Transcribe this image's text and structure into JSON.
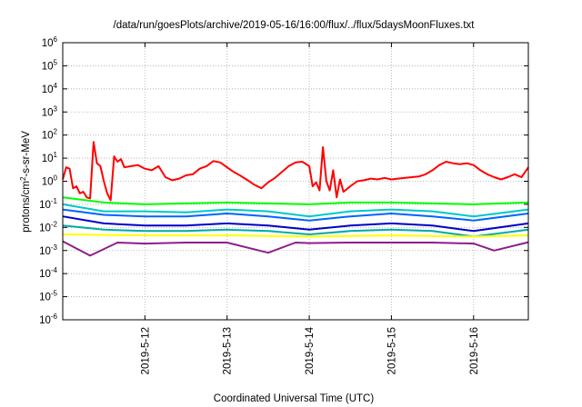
{
  "chart_data": {
    "type": "line",
    "title": "/data/run/goesPlots/archive/2019-05-16/16:00/flux/../flux/5daysMoonFluxes.txt",
    "xlabel": "Coordinated Universal Time (UTC)",
    "ylabel": {
      "base": "protons/cm",
      "sup": "2",
      "rest": "-s-sr-MeV"
    },
    "yscale": "log",
    "ylim": [
      1e-06,
      1000000.0
    ],
    "xlim": [
      "2019-05-11T00:00",
      "2019-05-16T16:00"
    ],
    "grid": true,
    "legend": "none",
    "x_ticks": [
      {
        "t": "2019-05-12T00:00",
        "label": "2019-5-12"
      },
      {
        "t": "2019-05-13T00:00",
        "label": "2019-5-13"
      },
      {
        "t": "2019-05-14T00:00",
        "label": "2019-5-14"
      },
      {
        "t": "2019-05-15T00:00",
        "label": "2019-5-15"
      },
      {
        "t": "2019-05-16T00:00",
        "label": "2019-5-16"
      }
    ],
    "y_ticks": [
      {
        "exp": "-6"
      },
      {
        "exp": "-5"
      },
      {
        "exp": "-4"
      },
      {
        "exp": "-3"
      },
      {
        "exp": "-2"
      },
      {
        "exp": "-1"
      },
      {
        "exp": "0"
      },
      {
        "exp": "1"
      },
      {
        "exp": "2"
      },
      {
        "exp": "3"
      },
      {
        "exp": "4"
      },
      {
        "exp": "5"
      },
      {
        "exp": "6"
      }
    ],
    "series": [
      {
        "color": "#ff0000",
        "points": [
          [
            "2019-05-11T00:00",
            1.2
          ],
          [
            "2019-05-11T01:00",
            4.0
          ],
          [
            "2019-05-11T02:00",
            3.5
          ],
          [
            "2019-05-11T03:00",
            0.5
          ],
          [
            "2019-05-11T04:00",
            0.6
          ],
          [
            "2019-05-11T05:00",
            0.3
          ],
          [
            "2019-05-11T06:00",
            0.35
          ],
          [
            "2019-05-11T07:00",
            0.2
          ],
          [
            "2019-05-11T08:00",
            0.18
          ],
          [
            "2019-05-11T09:00",
            50
          ],
          [
            "2019-05-11T10:00",
            6
          ],
          [
            "2019-05-11T11:00",
            4.5
          ],
          [
            "2019-05-11T12:00",
            1.0
          ],
          [
            "2019-05-11T13:00",
            0.3
          ],
          [
            "2019-05-11T14:00",
            0.15
          ],
          [
            "2019-05-11T15:00",
            12
          ],
          [
            "2019-05-11T16:00",
            7
          ],
          [
            "2019-05-11T17:00",
            9
          ],
          [
            "2019-05-11T18:00",
            4
          ],
          [
            "2019-05-11T20:00",
            4.5
          ],
          [
            "2019-05-11T22:00",
            5
          ],
          [
            "2019-05-12T00:00",
            3.5
          ],
          [
            "2019-05-12T02:00",
            3
          ],
          [
            "2019-05-12T04:00",
            4.5
          ],
          [
            "2019-05-12T06:00",
            1.5
          ],
          [
            "2019-05-12T08:00",
            1.1
          ],
          [
            "2019-05-12T10:00",
            1.3
          ],
          [
            "2019-05-12T12:00",
            1.8
          ],
          [
            "2019-05-12T14:00",
            2.0
          ],
          [
            "2019-05-12T16:00",
            3.5
          ],
          [
            "2019-05-12T18:00",
            4.5
          ],
          [
            "2019-05-12T20:00",
            7.5
          ],
          [
            "2019-05-12T22:00",
            6.5
          ],
          [
            "2019-05-13T00:00",
            4
          ],
          [
            "2019-05-13T02:00",
            2.5
          ],
          [
            "2019-05-13T04:00",
            1.7
          ],
          [
            "2019-05-13T06:00",
            1.1
          ],
          [
            "2019-05-13T08:00",
            0.7
          ],
          [
            "2019-05-13T10:00",
            0.5
          ],
          [
            "2019-05-13T12:00",
            0.9
          ],
          [
            "2019-05-13T14:00",
            1.4
          ],
          [
            "2019-05-13T16:00",
            2.5
          ],
          [
            "2019-05-13T18:00",
            4.5
          ],
          [
            "2019-05-13T20:00",
            6.5
          ],
          [
            "2019-05-13T22:00",
            7
          ],
          [
            "2019-05-14T00:00",
            4.5
          ],
          [
            "2019-05-14T01:00",
            0.6
          ],
          [
            "2019-05-14T02:00",
            0.9
          ],
          [
            "2019-05-14T03:00",
            0.4
          ],
          [
            "2019-05-14T04:00",
            30
          ],
          [
            "2019-05-14T05:00",
            1.0
          ],
          [
            "2019-05-14T06:00",
            0.4
          ],
          [
            "2019-05-14T07:00",
            3
          ],
          [
            "2019-05-14T08:00",
            0.2
          ],
          [
            "2019-05-14T09:00",
            1.2
          ],
          [
            "2019-05-14T10:00",
            0.35
          ],
          [
            "2019-05-14T12:00",
            0.6
          ],
          [
            "2019-05-14T14:00",
            1.0
          ],
          [
            "2019-05-14T16:00",
            1.1
          ],
          [
            "2019-05-14T18:00",
            1.3
          ],
          [
            "2019-05-14T20:00",
            1.2
          ],
          [
            "2019-05-14T22:00",
            1.4
          ],
          [
            "2019-05-15T00:00",
            1.2
          ],
          [
            "2019-05-15T02:00",
            1.3
          ],
          [
            "2019-05-15T04:00",
            1.4
          ],
          [
            "2019-05-15T06:00",
            1.5
          ],
          [
            "2019-05-15T08:00",
            1.6
          ],
          [
            "2019-05-15T10:00",
            2.0
          ],
          [
            "2019-05-15T12:00",
            3.0
          ],
          [
            "2019-05-15T14:00",
            5
          ],
          [
            "2019-05-15T16:00",
            7
          ],
          [
            "2019-05-15T18:00",
            6
          ],
          [
            "2019-05-15T20:00",
            5.5
          ],
          [
            "2019-05-15T22:00",
            6
          ],
          [
            "2019-05-16T00:00",
            5
          ],
          [
            "2019-05-16T02:00",
            3
          ],
          [
            "2019-05-16T04:00",
            2
          ],
          [
            "2019-05-16T06:00",
            1.5
          ],
          [
            "2019-05-16T08:00",
            1.2
          ],
          [
            "2019-05-16T10:00",
            1.5
          ],
          [
            "2019-05-16T12:00",
            2.0
          ],
          [
            "2019-05-16T14:00",
            1.5
          ],
          [
            "2019-05-16T16:00",
            4
          ]
        ]
      },
      {
        "color": "#00ff00",
        "points": [
          [
            "2019-05-11T00:00",
            0.2
          ],
          [
            "2019-05-11T12:00",
            0.12
          ],
          [
            "2019-05-12T00:00",
            0.1
          ],
          [
            "2019-05-12T12:00",
            0.11
          ],
          [
            "2019-05-13T00:00",
            0.12
          ],
          [
            "2019-05-13T12:00",
            0.11
          ],
          [
            "2019-05-14T00:00",
            0.1
          ],
          [
            "2019-05-14T12:00",
            0.12
          ],
          [
            "2019-05-15T00:00",
            0.12
          ],
          [
            "2019-05-15T12:00",
            0.11
          ],
          [
            "2019-05-16T00:00",
            0.1
          ],
          [
            "2019-05-16T16:00",
            0.12
          ]
        ]
      },
      {
        "color": "#00c8c8",
        "points": [
          [
            "2019-05-11T00:00",
            0.1
          ],
          [
            "2019-05-11T12:00",
            0.05
          ],
          [
            "2019-05-12T00:00",
            0.05
          ],
          [
            "2019-05-12T12:00",
            0.045
          ],
          [
            "2019-05-13T00:00",
            0.06
          ],
          [
            "2019-05-13T12:00",
            0.05
          ],
          [
            "2019-05-14T00:00",
            0.03
          ],
          [
            "2019-05-14T12:00",
            0.05
          ],
          [
            "2019-05-15T00:00",
            0.06
          ],
          [
            "2019-05-15T12:00",
            0.05
          ],
          [
            "2019-05-16T00:00",
            0.03
          ],
          [
            "2019-05-16T16:00",
            0.06
          ]
        ]
      },
      {
        "color": "#0064ff",
        "points": [
          [
            "2019-05-11T00:00",
            0.06
          ],
          [
            "2019-05-11T12:00",
            0.035
          ],
          [
            "2019-05-12T00:00",
            0.03
          ],
          [
            "2019-05-12T12:00",
            0.03
          ],
          [
            "2019-05-13T00:00",
            0.04
          ],
          [
            "2019-05-13T12:00",
            0.03
          ],
          [
            "2019-05-14T00:00",
            0.02
          ],
          [
            "2019-05-14T12:00",
            0.03
          ],
          [
            "2019-05-15T00:00",
            0.04
          ],
          [
            "2019-05-15T12:00",
            0.03
          ],
          [
            "2019-05-16T00:00",
            0.02
          ],
          [
            "2019-05-16T16:00",
            0.04
          ]
        ]
      },
      {
        "color": "#0000c8",
        "points": [
          [
            "2019-05-11T00:00",
            0.03
          ],
          [
            "2019-05-11T12:00",
            0.015
          ],
          [
            "2019-05-12T00:00",
            0.012
          ],
          [
            "2019-05-12T12:00",
            0.012
          ],
          [
            "2019-05-13T00:00",
            0.015
          ],
          [
            "2019-05-13T12:00",
            0.012
          ],
          [
            "2019-05-14T00:00",
            0.008
          ],
          [
            "2019-05-14T12:00",
            0.012
          ],
          [
            "2019-05-15T00:00",
            0.015
          ],
          [
            "2019-05-15T12:00",
            0.012
          ],
          [
            "2019-05-16T00:00",
            0.007
          ],
          [
            "2019-05-16T16:00",
            0.015
          ]
        ]
      },
      {
        "color": "#00aaaa",
        "points": [
          [
            "2019-05-11T00:00",
            0.012
          ],
          [
            "2019-05-11T12:00",
            0.008
          ],
          [
            "2019-05-12T00:00",
            0.007
          ],
          [
            "2019-05-12T12:00",
            0.007
          ],
          [
            "2019-05-13T00:00",
            0.008
          ],
          [
            "2019-05-13T12:00",
            0.007
          ],
          [
            "2019-05-14T00:00",
            0.005
          ],
          [
            "2019-05-14T12:00",
            0.007
          ],
          [
            "2019-05-15T00:00",
            0.008
          ],
          [
            "2019-05-15T12:00",
            0.007
          ],
          [
            "2019-05-16T00:00",
            0.004
          ],
          [
            "2019-05-16T16:00",
            0.008
          ]
        ]
      },
      {
        "color": "#ffff00",
        "points": [
          [
            "2019-05-11T00:00",
            0.005
          ],
          [
            "2019-05-12T00:00",
            0.0045
          ],
          [
            "2019-05-13T00:00",
            0.0045
          ],
          [
            "2019-05-14T00:00",
            0.004
          ],
          [
            "2019-05-15T00:00",
            0.0045
          ],
          [
            "2019-05-16T00:00",
            0.004
          ],
          [
            "2019-05-16T16:00",
            0.0045
          ]
        ]
      },
      {
        "color": "#8c1e8c",
        "points": [
          [
            "2019-05-11T00:00",
            0.0025
          ],
          [
            "2019-05-11T08:00",
            0.0006
          ],
          [
            "2019-05-11T16:00",
            0.0022
          ],
          [
            "2019-05-12T00:00",
            0.002
          ],
          [
            "2019-05-12T12:00",
            0.0022
          ],
          [
            "2019-05-13T00:00",
            0.0022
          ],
          [
            "2019-05-13T12:00",
            0.0008
          ],
          [
            "2019-05-13T20:00",
            0.0022
          ],
          [
            "2019-05-14T00:00",
            0.0021
          ],
          [
            "2019-05-14T12:00",
            0.0022
          ],
          [
            "2019-05-15T00:00",
            0.0022
          ],
          [
            "2019-05-15T12:00",
            0.0022
          ],
          [
            "2019-05-16T00:00",
            0.002
          ],
          [
            "2019-05-16T06:00",
            0.001
          ],
          [
            "2019-05-16T16:00",
            0.0023
          ]
        ]
      }
    ]
  }
}
